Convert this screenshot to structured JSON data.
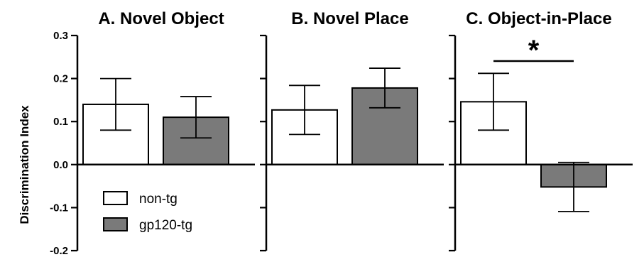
{
  "chart_data": {
    "type": "bar",
    "ylabel": "Discrimination Index",
    "ylim": [
      -0.2,
      0.3
    ],
    "yticks": [
      "-0.2",
      "-0.1",
      "0.0",
      "0.1",
      "0.2",
      "0.3"
    ],
    "grid": false,
    "legend": {
      "placement": "bottom-left",
      "entries": [
        {
          "name": "non-tg",
          "color": "#ffffff"
        },
        {
          "name": "gp120-tg",
          "color": "#7a7a7a"
        }
      ]
    },
    "series_names": [
      "non-tg",
      "gp120-tg"
    ],
    "panels": [
      {
        "title": "A. Novel Object",
        "values": [
          0.14,
          0.11
        ],
        "errors": [
          0.06,
          0.048
        ],
        "significance": ""
      },
      {
        "title": "B. Novel Place",
        "values": [
          0.127,
          0.178
        ],
        "errors": [
          0.057,
          0.046
        ],
        "significance": ""
      },
      {
        "title": "C. Object-in-Place",
        "values": [
          0.146,
          -0.052
        ],
        "errors": [
          0.066,
          0.057
        ],
        "significance": "*"
      }
    ]
  }
}
